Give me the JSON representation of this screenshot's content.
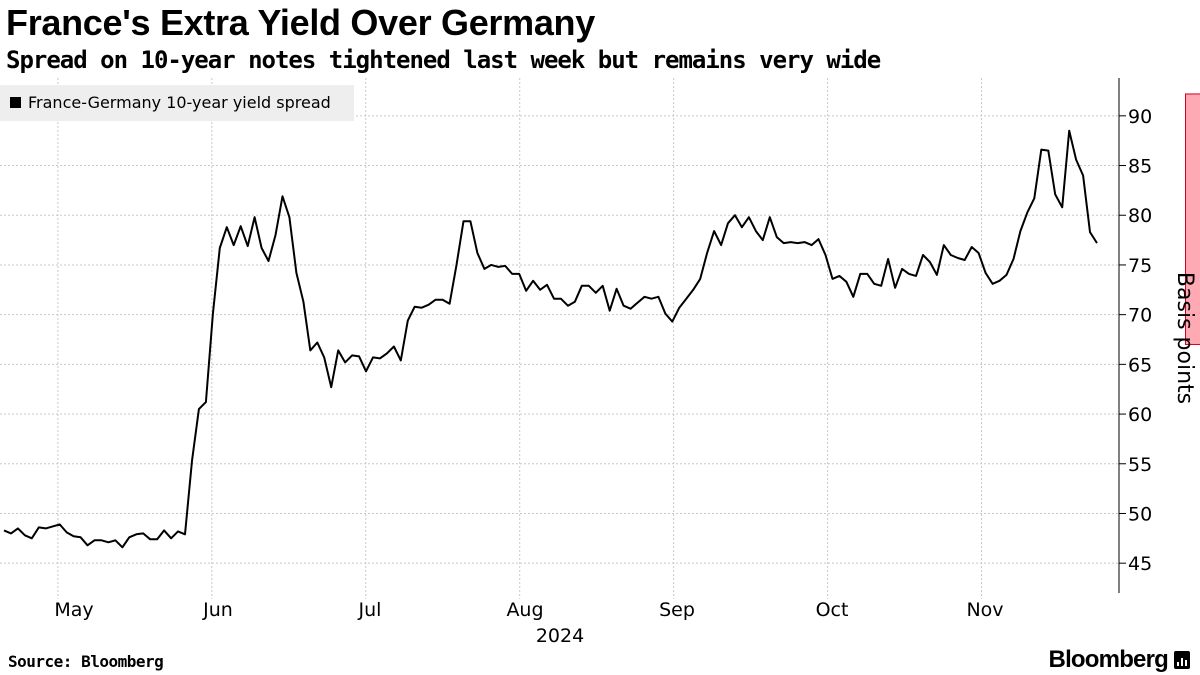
{
  "header": {
    "title": "France's Extra Yield Over Germany",
    "subtitle": "Spread on 10-year notes tightened last week but remains very wide"
  },
  "footer": {
    "source": "Source: Bloomberg",
    "brand": "Bloomberg"
  },
  "colors": {
    "line": "#000000",
    "highlight_fill": "#ff9aa8",
    "highlight_stroke": "#d00020",
    "grid": "#c8c8c8",
    "legend_bg": "#eeeeee"
  },
  "chart_data": {
    "type": "line",
    "title": "France's Extra Yield Over Germany",
    "subtitle": "Spread on 10-year notes tightened last week but remains very wide",
    "ylabel": "Basis points",
    "xlabel": "2024",
    "year_label": "2024",
    "ylim": [
      42,
      93
    ],
    "y_ticks": [
      45,
      50,
      55,
      60,
      65,
      70,
      75,
      80,
      85,
      90
    ],
    "x_month_labels": [
      "May",
      "Jun",
      "Jul",
      "Aug",
      "Sep",
      "Oct",
      "Nov"
    ],
    "legend": [
      "France-Germany 10-year yield spread"
    ],
    "legend_position": "top-left",
    "grid": true,
    "highlight": {
      "from_index": 170,
      "to_index": 189,
      "y_from": 67,
      "y_to": 92.2
    },
    "series": [
      {
        "name": "France-Germany 10-year yield spread",
        "values": [
          48.3,
          48.0,
          48.5,
          47.8,
          47.5,
          48.6,
          48.5,
          48.7,
          48.9,
          48.1,
          47.7,
          47.6,
          46.8,
          47.3,
          47.3,
          47.1,
          47.3,
          46.6,
          47.6,
          47.9,
          48.0,
          47.4,
          47.4,
          48.3,
          47.5,
          48.2,
          47.9,
          55.3,
          60.5,
          61.2,
          70.1,
          76.7,
          78.8,
          77.0,
          78.9,
          76.9,
          79.8,
          76.7,
          75.4,
          78.0,
          81.9,
          79.8,
          74.2,
          71.3,
          66.4,
          67.2,
          65.7,
          62.7,
          66.4,
          65.2,
          65.9,
          65.8,
          64.3,
          65.7,
          65.6,
          66.1,
          66.8,
          65.4,
          69.4,
          70.8,
          70.7,
          71.0,
          71.5,
          71.5,
          71.1,
          75.0,
          79.4,
          79.4,
          76.2,
          74.6,
          75.0,
          74.8,
          74.9,
          74.1,
          74.1,
          72.4,
          73.4,
          72.5,
          73.0,
          71.6,
          71.6,
          70.9,
          71.3,
          72.9,
          72.9,
          72.2,
          72.9,
          70.4,
          72.6,
          70.9,
          70.6,
          71.2,
          71.8,
          71.6,
          71.8,
          70.1,
          69.3,
          70.7,
          71.6,
          72.5,
          73.6,
          76.2,
          78.4,
          77.0,
          79.2,
          80.0,
          78.8,
          79.8,
          78.4,
          77.5,
          79.8,
          77.8,
          77.2,
          77.3,
          77.2,
          77.3,
          77.0,
          77.6,
          76.0,
          73.6,
          73.9,
          73.3,
          71.8,
          74.1,
          74.1,
          73.1,
          72.9,
          75.6,
          72.7,
          74.6,
          74.1,
          73.9,
          76.0,
          75.3,
          74.0,
          77.0,
          76.0,
          75.7,
          75.5,
          76.8,
          76.2,
          74.2,
          73.1,
          73.4,
          74.0,
          75.6,
          78.4,
          80.3,
          81.7,
          86.6,
          86.5,
          82.1,
          80.8,
          88.5,
          85.6,
          84.0,
          78.3,
          77.2
        ]
      }
    ]
  }
}
